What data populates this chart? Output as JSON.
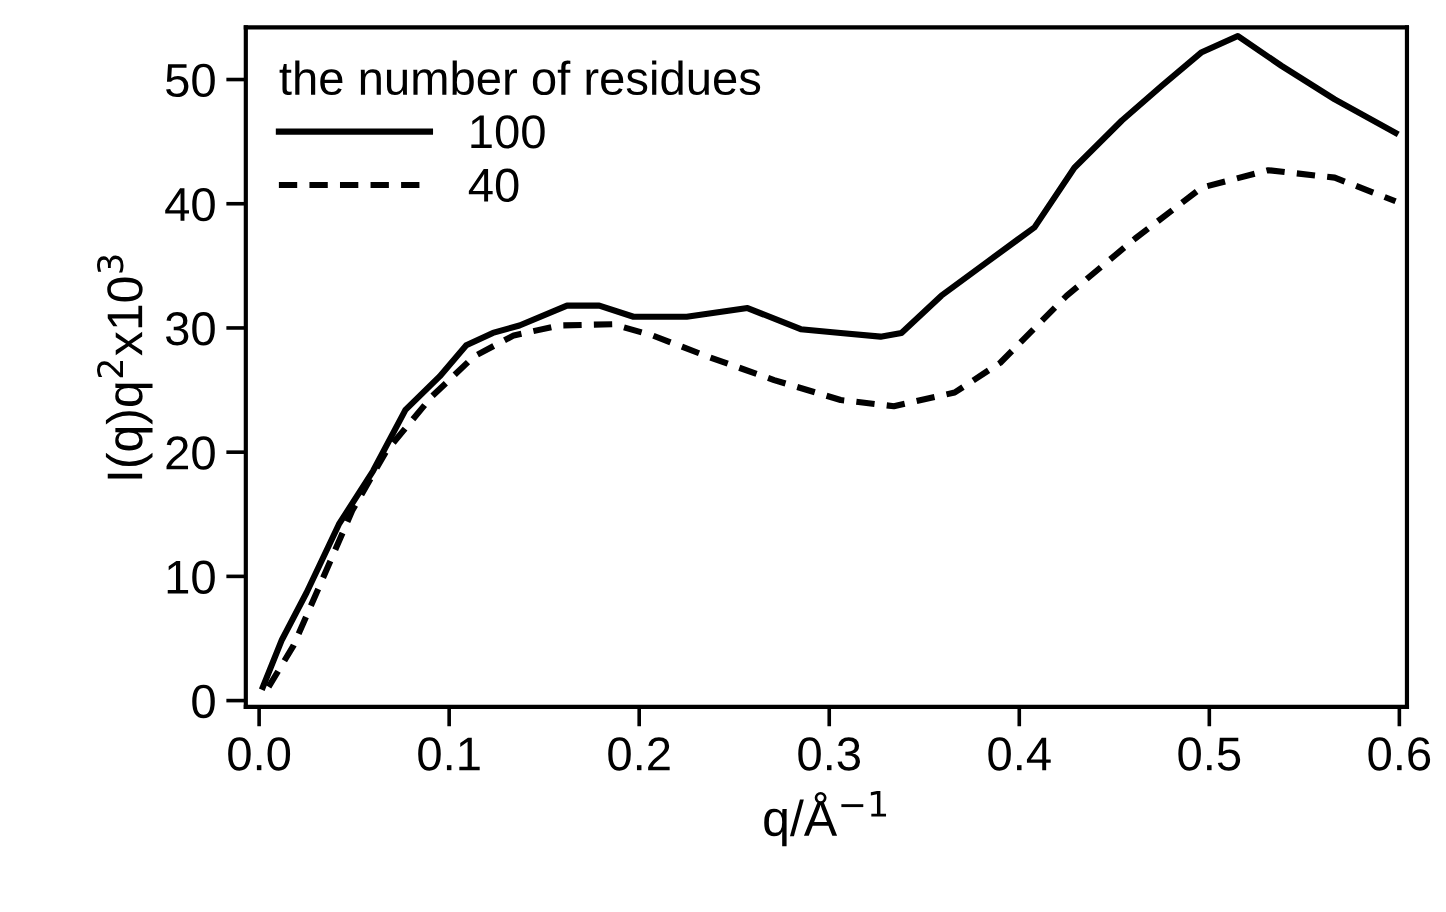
{
  "chart_data": {
    "type": "line",
    "xlabel": "q/Å$^{−1}$",
    "ylabel": "I(q)q$^{2}$x10$^{3}$",
    "legend_title": "the number of residues",
    "legend": "top left",
    "grid": false,
    "marker": "none",
    "xlim": [
      -0.007,
      0.604
    ],
    "ylim": [
      -0.5,
      54.2
    ],
    "xticks": [
      {
        "value": 0,
        "label": "0.0"
      },
      0.1,
      0.2,
      0.3,
      0.4,
      0.5,
      0.6
    ],
    "yticks": [
      0,
      10,
      20,
      30,
      40,
      50
    ],
    "series": [
      {
        "name": "100",
        "color": "#000000",
        "line_style": "solid",
        "x": [
          0.002,
          0.012,
          0.025,
          0.042,
          0.06,
          0.077,
          0.095,
          0.109,
          0.123,
          0.137,
          0.162,
          0.179,
          0.197,
          0.225,
          0.257,
          0.285,
          0.306,
          0.327,
          0.338,
          0.359,
          0.383,
          0.408,
          0.429,
          0.454,
          0.475,
          0.496,
          0.515,
          0.538,
          0.566,
          0.598
        ],
        "values": [
          1.1,
          4.9,
          8.7,
          14.2,
          18.5,
          23.4,
          26.1,
          28.6,
          29.6,
          30.2,
          31.8,
          31.8,
          30.9,
          30.9,
          31.6,
          29.9,
          29.6,
          29.3,
          29.6,
          32.6,
          35.3,
          38.1,
          42.9,
          46.7,
          49.5,
          52.2,
          53.5,
          51.1,
          48.4,
          45.7
        ]
      },
      {
        "name": "40",
        "color": "#000000",
        "line_style": "dashed",
        "x": [
          0.005,
          0.018,
          0.032,
          0.049,
          0.067,
          0.091,
          0.113,
          0.134,
          0.158,
          0.186,
          0.207,
          0.236,
          0.271,
          0.306,
          0.334,
          0.366,
          0.39,
          0.425,
          0.461,
          0.496,
          0.531,
          0.566,
          0.598
        ],
        "values": [
          1.1,
          4.4,
          9.3,
          15.3,
          20.1,
          24.5,
          27.7,
          29.4,
          30.2,
          30.3,
          29.4,
          27.7,
          25.8,
          24.2,
          23.7,
          24.8,
          27.2,
          32.6,
          37.2,
          41.3,
          42.7,
          42.1,
          40.2
        ]
      }
    ]
  }
}
